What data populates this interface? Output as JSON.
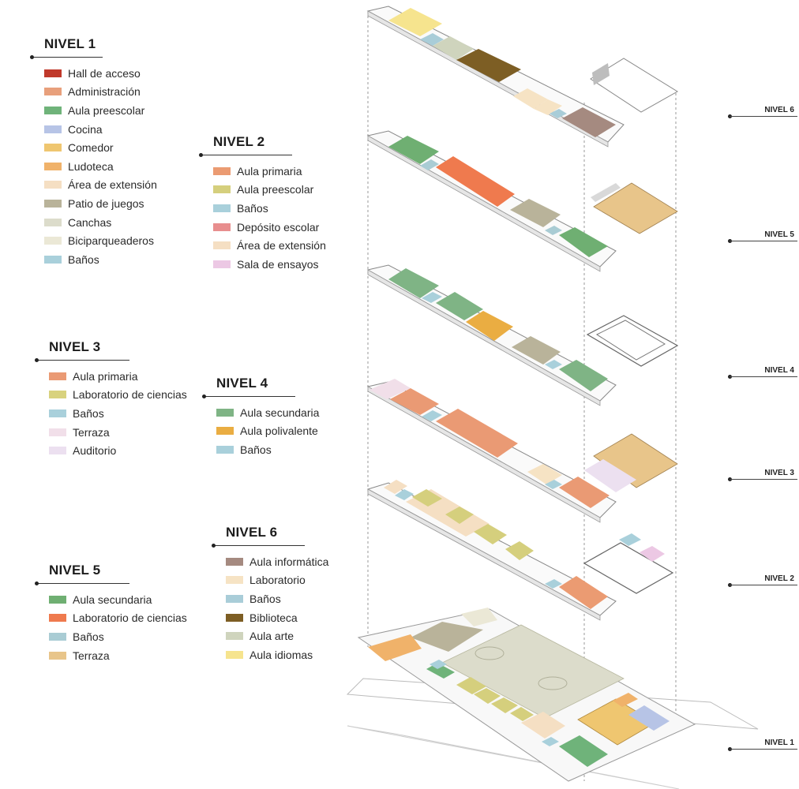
{
  "legends": [
    {
      "id": "nivel1",
      "title": "NIVEL 1",
      "items": [
        {
          "label": "Hall de acceso",
          "color": "#c0392b"
        },
        {
          "label": "Administración",
          "color": "#e8a07c"
        },
        {
          "label": "Aula preescolar",
          "color": "#6fb37a"
        },
        {
          "label": "Cocina",
          "color": "#b7c4e6"
        },
        {
          "label": "Comedor",
          "color": "#efc670"
        },
        {
          "label": "Ludoteca",
          "color": "#f0b26a"
        },
        {
          "label": "Área de extensión",
          "color": "#f5dfc3"
        },
        {
          "label": "Patio de juegos",
          "color": "#b9b39a"
        },
        {
          "label": "Canchas",
          "color": "#dcdccb"
        },
        {
          "label": "Biciparqueaderos",
          "color": "#ebe8d6"
        },
        {
          "label": "Baños",
          "color": "#a9d0db"
        }
      ]
    },
    {
      "id": "nivel2",
      "title": "NIVEL 2",
      "items": [
        {
          "label": "Aula primaria",
          "color": "#eb9b72"
        },
        {
          "label": "Aula preescolar",
          "color": "#d5cf7d"
        },
        {
          "label": "Baños",
          "color": "#a9d0db"
        },
        {
          "label": "Depósito escolar",
          "color": "#e88e8e"
        },
        {
          "label": "Área de extensión",
          "color": "#f5dfc3"
        },
        {
          "label": "Sala de ensayos",
          "color": "#ecc8e4"
        }
      ]
    },
    {
      "id": "nivel3",
      "title": "NIVEL 3",
      "items": [
        {
          "label": "Aula primaria",
          "color": "#ea9a74"
        },
        {
          "label": "Laboratorio de ciencias",
          "color": "#d8d27e"
        },
        {
          "label": "Baños",
          "color": "#a9d0db"
        },
        {
          "label": "Terraza",
          "color": "#f1dfe9"
        },
        {
          "label": "Auditorio",
          "color": "#ece0f0"
        }
      ]
    },
    {
      "id": "nivel4",
      "title": "NIVEL 4",
      "items": [
        {
          "label": "Aula secundaria",
          "color": "#7fb485"
        },
        {
          "label": "Aula polivalente",
          "color": "#eaad42"
        },
        {
          "label": "Baños",
          "color": "#a9d0db"
        }
      ]
    },
    {
      "id": "nivel5",
      "title": "NIVEL 5",
      "items": [
        {
          "label": "Aula secundaria",
          "color": "#6faf72"
        },
        {
          "label": "Laboratorio de ciencias",
          "color": "#ef7a4e"
        },
        {
          "label": "Baños",
          "color": "#a9ccd4"
        },
        {
          "label": "Terraza",
          "color": "#e8c58a"
        }
      ]
    },
    {
      "id": "nivel6",
      "title": "NIVEL 6",
      "items": [
        {
          "label": "Aula informática",
          "color": "#a58a80"
        },
        {
          "label": "Laboratorio",
          "color": "#f6e3c4"
        },
        {
          "label": "Baños",
          "color": "#a9cdd8"
        },
        {
          "label": "Biblioteca",
          "color": "#7d5e24"
        },
        {
          "label": "Aula arte",
          "color": "#cfd4bd"
        },
        {
          "label": "Aula idiomas",
          "color": "#f6e48e"
        }
      ]
    }
  ],
  "level_tags": [
    "NIVEL 6",
    "NIVEL 5",
    "NIVEL 4",
    "NIVEL 3",
    "NIVEL 2",
    "NIVEL 1"
  ]
}
